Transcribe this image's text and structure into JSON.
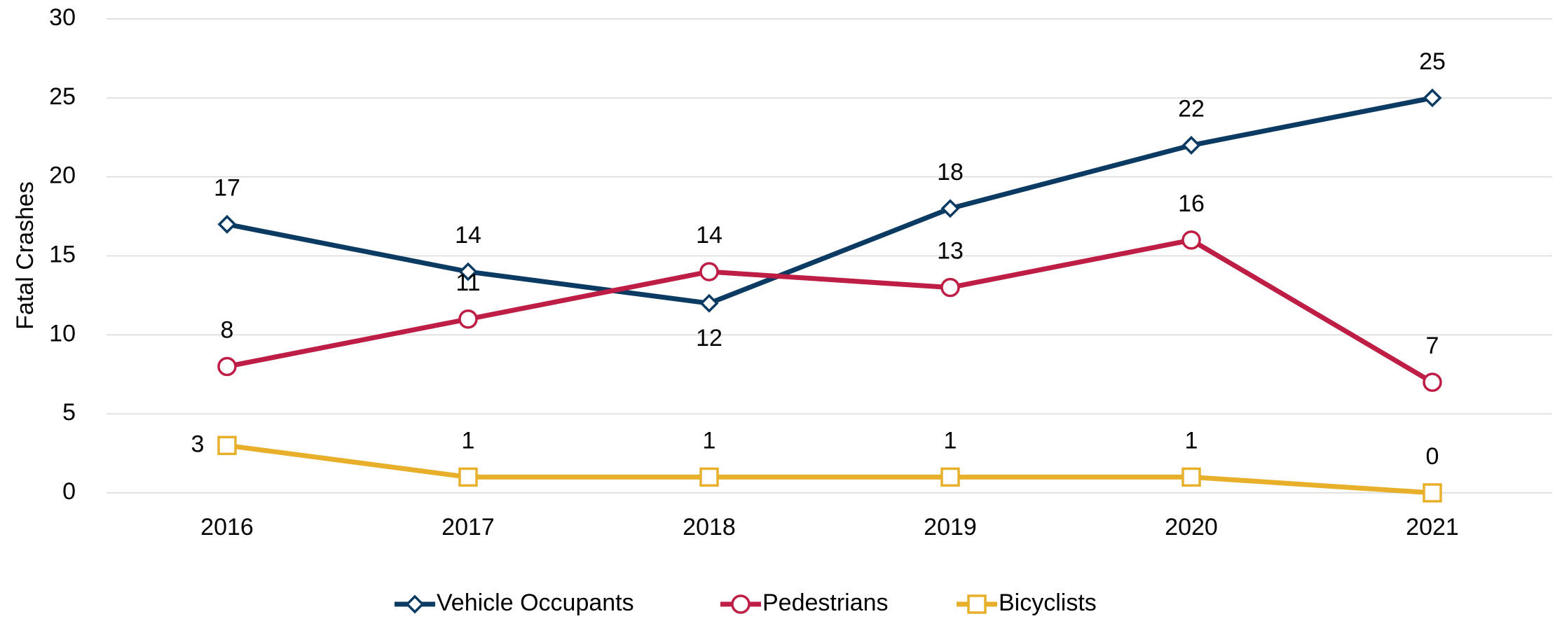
{
  "chart_data": {
    "type": "line",
    "y_label": "Fatal Crashes",
    "categories": [
      "2016",
      "2017",
      "2018",
      "2019",
      "2020",
      "2021"
    ],
    "series": [
      {
        "name": "Vehicle Occupants",
        "color": "#0b3a62",
        "marker": "diamond",
        "values": [
          17,
          14,
          12,
          18,
          22,
          25
        ],
        "last_label_color": "#c00000"
      },
      {
        "name": "Pedestrians",
        "color": "#be1e45",
        "marker": "circle",
        "values": [
          8,
          11,
          14,
          13,
          16,
          7
        ],
        "last_label_color": "#c00000"
      },
      {
        "name": "Bicyclists",
        "color": "#e8b02a",
        "marker": "square",
        "values": [
          3,
          1,
          1,
          1,
          1,
          0
        ],
        "last_label_color": "#c00000"
      }
    ],
    "ylim": [
      0,
      30
    ],
    "yticks": [
      0,
      5,
      10,
      15,
      20,
      25,
      30
    ],
    "grid": true,
    "legend": "bottom"
  }
}
